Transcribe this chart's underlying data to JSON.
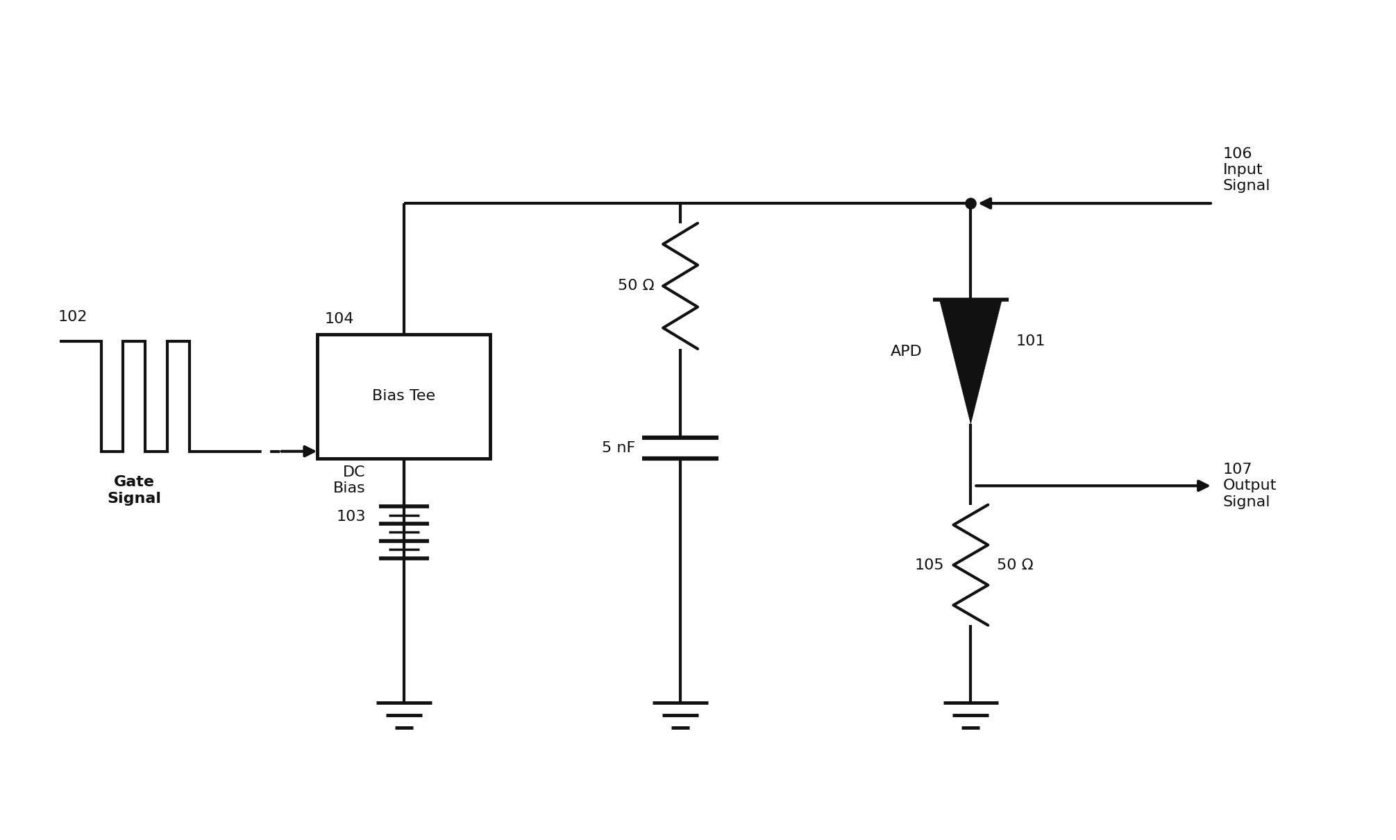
{
  "background_color": "#ffffff",
  "line_color": "#111111",
  "line_width": 3.0,
  "fig_width": 20.11,
  "fig_height": 12.11,
  "labels": {
    "gate_signal": "Gate\nSignal",
    "label_102": "102",
    "bias_tee": "Bias Tee",
    "label_104": "104",
    "dc_bias": "DC\nBias",
    "label_103": "103",
    "r1_label": "50 Ω",
    "c1_label": "5 nF",
    "apd_label": "APD",
    "label_101": "101",
    "r2_label": "50 Ω",
    "label_105": "105",
    "input_signal": "106\nInput\nSignal",
    "output_signal": "107\nOutput\nSignal"
  },
  "font_size": 16,
  "font_size_label": 15
}
